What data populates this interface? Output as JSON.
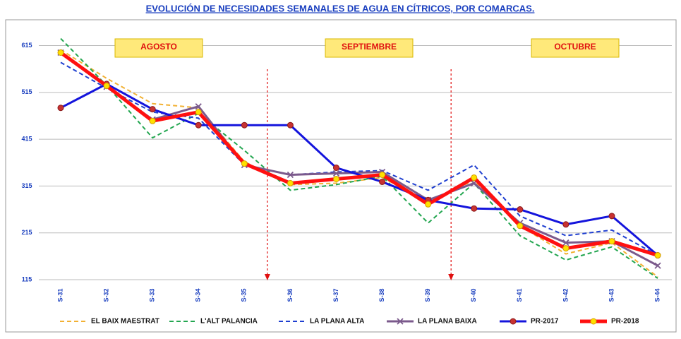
{
  "chart_data": {
    "type": "line",
    "title": "EVOLUCIÓN DE NECESIDADES SEMANALES DE AGUA EN CÍTRICOS, POR COMARCAS.",
    "annotations": [
      "AGOSTO",
      "SEPTIEMBRE",
      "OCTUBRE"
    ],
    "categories": [
      "S-31",
      "S-32",
      "S-33",
      "S-34",
      "S-35",
      "S-36",
      "S-37",
      "S-38",
      "S-39",
      "S-40",
      "S-41",
      "S-42",
      "S-43",
      "S-44"
    ],
    "ylim": [
      115,
      655
    ],
    "yticks": [
      115,
      215,
      315,
      415,
      515,
      615
    ],
    "grid": true,
    "legend": "bottom",
    "series": [
      {
        "name": "EL BAIX MAESTRAT",
        "color": "#f2b134",
        "style": "dashed",
        "values": [
          606,
          545,
          491,
          482,
          367,
          318,
          321,
          333,
          282,
          327,
          230,
          170,
          194,
          121
        ]
      },
      {
        "name": "L'ALT PALANCIA",
        "color": "#23a650",
        "style": "dashed",
        "values": [
          630,
          530,
          418,
          470,
          391,
          306,
          318,
          336,
          236,
          321,
          209,
          157,
          185,
          118
        ]
      },
      {
        "name": "LA PLANA ALTA",
        "color": "#1f3fd0",
        "style": "dashed",
        "values": [
          579,
          524,
          473,
          460,
          360,
          339,
          345,
          348,
          306,
          360,
          251,
          209,
          221,
          167
        ]
      },
      {
        "name": "LA PLANA BAIXA",
        "color": "#7b5a8c",
        "style": "solid-x",
        "values": [
          600,
          527,
          457,
          485,
          360,
          339,
          342,
          345,
          285,
          321,
          236,
          194,
          197,
          145
        ]
      },
      {
        "name": "PR-2017",
        "color": "#1414dc",
        "style": "solid-dot",
        "marker_color": "#c83232",
        "values": [
          482,
          533,
          479,
          445,
          445,
          445,
          354,
          324,
          285,
          267,
          265,
          233,
          251,
          167
        ]
      },
      {
        "name": "PR-2018",
        "color": "#ff1010",
        "style": "thick-dot",
        "marker_color": "#ffe000",
        "values": [
          600,
          529,
          454,
          473,
          363,
          321,
          330,
          339,
          276,
          333,
          230,
          182,
          197,
          167
        ]
      }
    ]
  }
}
